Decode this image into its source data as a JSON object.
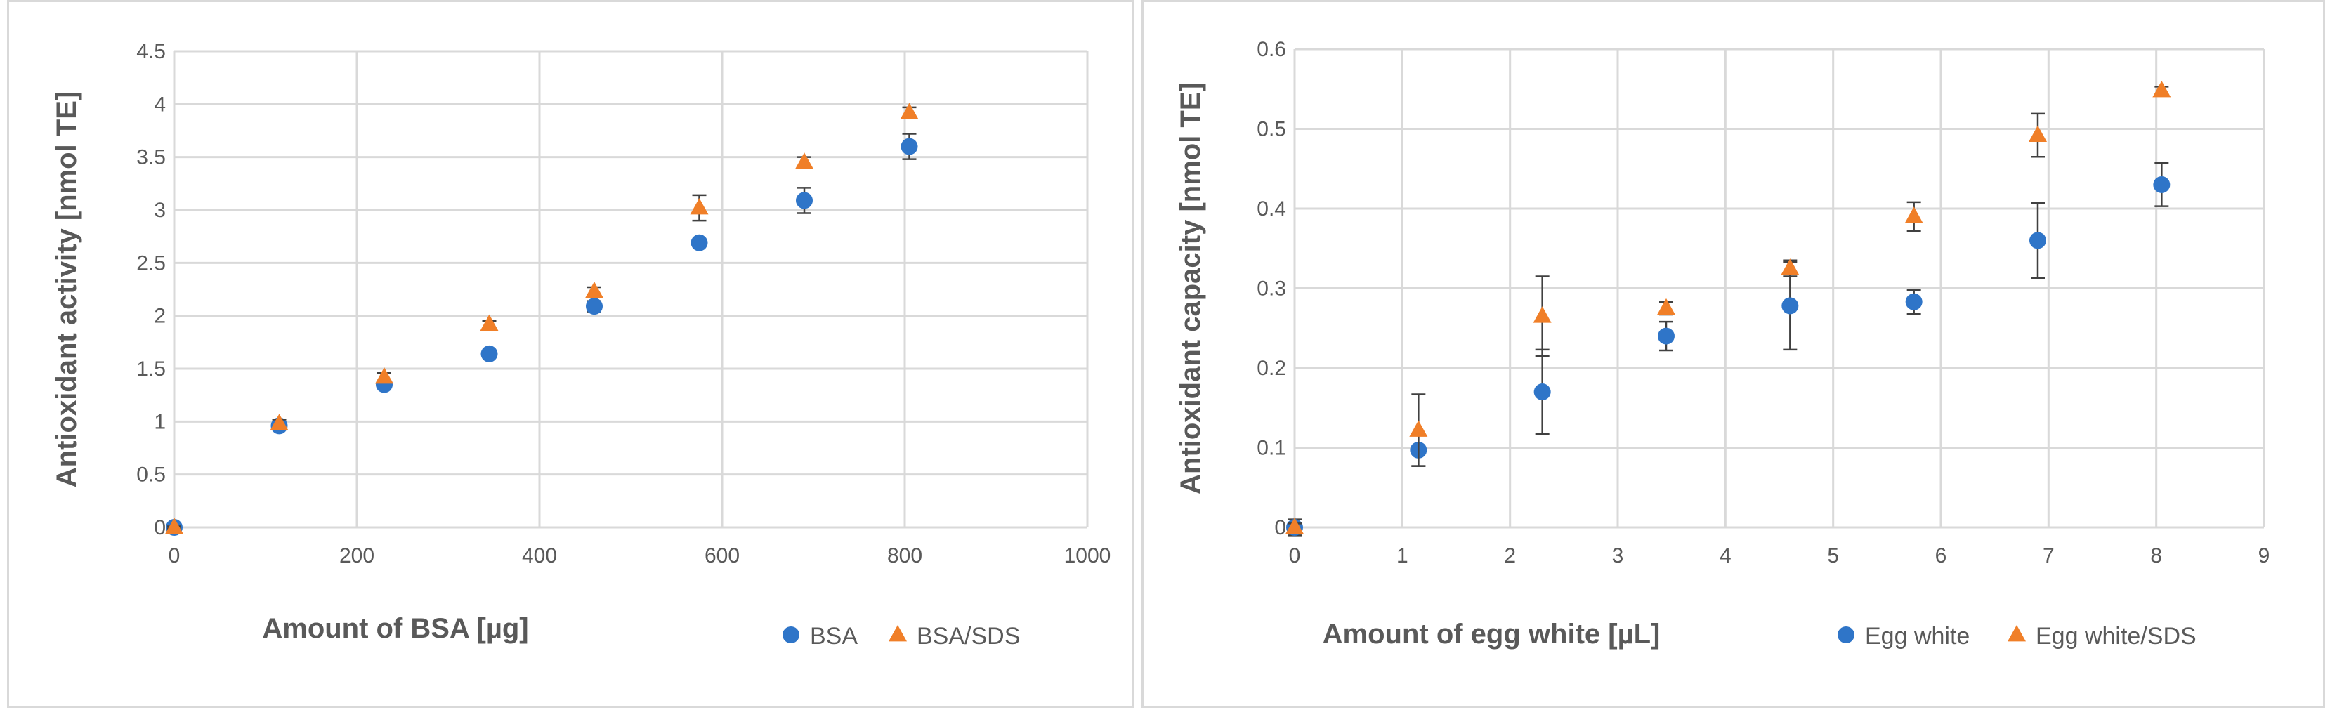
{
  "colors": {
    "series1": "#2f75c8",
    "series2": "#f07f28",
    "grid": "#d9d9d9",
    "text": "#595959",
    "errorbar": "#404040"
  },
  "chart_data": [
    {
      "type": "scatter",
      "xlabel": "Amount of BSA [µg]",
      "ylabel": "Antioxidant activity [nmol TE]",
      "xlim": [
        0,
        1000
      ],
      "ylim": [
        0,
        4.5
      ],
      "xticks": [
        "0",
        "200",
        "400",
        "600",
        "800",
        "1000"
      ],
      "yticks": [
        "0",
        "0.5",
        "1",
        "1.5",
        "2",
        "2.5",
        "3",
        "3.5",
        "4",
        "4.5"
      ],
      "grid": true,
      "legend": "bottom-right",
      "series": [
        {
          "name": "BSA",
          "marker": "circle",
          "x": [
            0,
            115,
            230,
            345,
            460,
            575,
            690,
            805
          ],
          "y": [
            0,
            0.96,
            1.35,
            1.64,
            2.09,
            2.69,
            3.09,
            3.6
          ],
          "err": [
            0.02,
            0.02,
            0.03,
            0.02,
            0.05,
            0.03,
            0.12,
            0.12
          ]
        },
        {
          "name": "BSA/SDS",
          "marker": "triangle",
          "x": [
            0,
            115,
            230,
            345,
            460,
            575,
            690,
            805
          ],
          "y": [
            0,
            0.98,
            1.42,
            1.92,
            2.23,
            3.02,
            3.45,
            3.92
          ],
          "err": [
            0.01,
            0.04,
            0.04,
            0.03,
            0.04,
            0.12,
            0.05,
            0.05
          ]
        }
      ]
    },
    {
      "type": "scatter",
      "xlabel": "Amount of egg white [µL]",
      "ylabel": "Antioxidant capacity [nmol TE]",
      "xlim": [
        0,
        9
      ],
      "ylim": [
        0,
        0.6
      ],
      "xticks": [
        "0",
        "1",
        "2",
        "3",
        "4",
        "5",
        "6",
        "7",
        "8",
        "9"
      ],
      "yticks": [
        "0",
        "0.1",
        "0.2",
        "0.3",
        "0.4",
        "0.5",
        "0.6"
      ],
      "grid": true,
      "legend": "bottom-right",
      "series": [
        {
          "name": "Egg white",
          "marker": "circle",
          "x": [
            0,
            1.15,
            2.3,
            3.45,
            4.6,
            5.75,
            6.9,
            8.05
          ],
          "y": [
            0,
            0.097,
            0.17,
            0.24,
            0.278,
            0.283,
            0.36,
            0.43
          ],
          "err": [
            0.01,
            0.02,
            0.053,
            0.018,
            0.055,
            0.015,
            0.047,
            0.027
          ]
        },
        {
          "name": "Egg white/SDS",
          "marker": "triangle",
          "x": [
            0,
            1.15,
            2.3,
            3.45,
            4.6,
            5.75,
            6.9,
            8.05
          ],
          "y": [
            0,
            0.122,
            0.265,
            0.275,
            0.325,
            0.39,
            0.492,
            0.548
          ],
          "err": [
            0.005,
            0.045,
            0.05,
            0.008,
            0.01,
            0.018,
            0.027,
            0.005
          ]
        }
      ]
    }
  ]
}
